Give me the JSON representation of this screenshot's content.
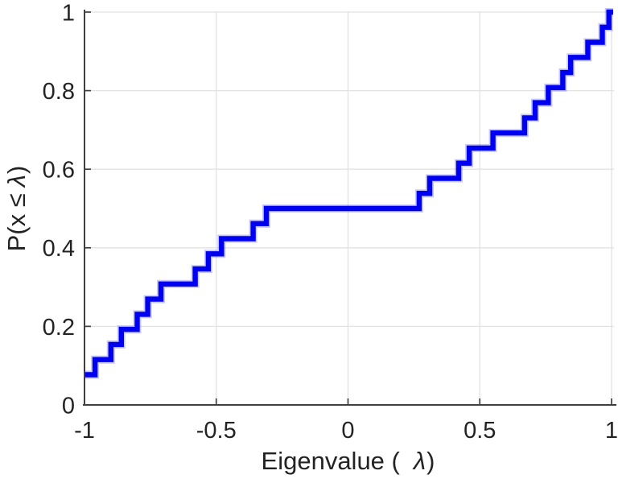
{
  "page": {
    "background": "#ffffff"
  },
  "chart_data": {
    "type": "step",
    "subtype": "empirical-cdf-stairs",
    "title": "",
    "xlabel": {
      "prefix": "Eigenvalue (",
      "lambda": "λ",
      "suffix": ")"
    },
    "ylabel": {
      "prefix": "P(x ≤",
      "lambda": "λ",
      "suffix": ")"
    },
    "xlim": [
      -1,
      1
    ],
    "ylim": [
      0,
      1
    ],
    "x_ticks": [
      -1,
      -0.5,
      0,
      0.5,
      1
    ],
    "x_tick_labels": [
      "-1",
      "-0.5",
      "0",
      "0.5",
      "1"
    ],
    "y_ticks": [
      0,
      0.2,
      0.4,
      0.6,
      0.8,
      1
    ],
    "y_tick_labels": [
      "0",
      "0.2",
      "0.4",
      "0.6",
      "0.8",
      "1"
    ],
    "grid": true,
    "legend": false,
    "n_samples": 26,
    "eigenvalues": [
      -1.0,
      -1.0,
      -0.96,
      -0.9,
      -0.86,
      -0.8,
      -0.76,
      -0.71,
      -0.58,
      -0.53,
      -0.48,
      -0.36,
      -0.31,
      0.27,
      0.31,
      0.42,
      0.46,
      0.55,
      0.67,
      0.71,
      0.76,
      0.815,
      0.845,
      0.91,
      0.965,
      0.99
    ],
    "cdf_levels_note": "ECDF steps of 1/26 per sample; plateau at 0.5 between -0.31 and 0.27; reaches 1.0 at 0.99",
    "colors": {
      "line": "#0000f0",
      "axis": "#3f3f3f",
      "grid": "#e2e2e2",
      "text": "#232323"
    }
  }
}
